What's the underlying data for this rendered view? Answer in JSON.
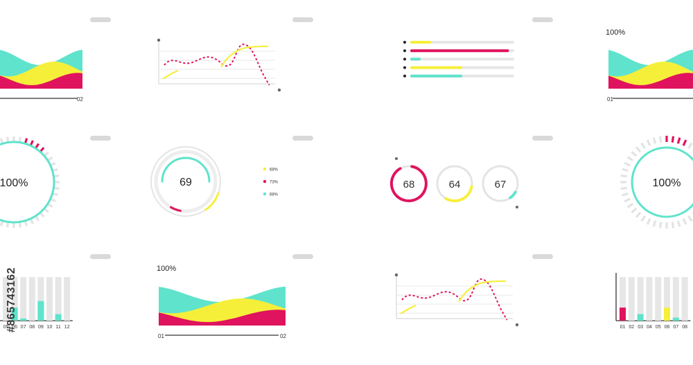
{
  "palette": {
    "cyan": "#5fe3cc",
    "yellow": "#f6ef3a",
    "magenta": "#e0135e",
    "grey": "#e6e6e6",
    "dark": "#333333"
  },
  "watermark": {
    "text": "#865743162"
  },
  "chart_data": [
    {
      "id": "wave-top-left",
      "type": "area",
      "title": "",
      "x_labels": [
        "02"
      ]
    },
    {
      "id": "line-top-2",
      "type": "line",
      "title": ""
    },
    {
      "id": "hbars-top-3",
      "type": "bar",
      "orientation": "horizontal",
      "series": [
        {
          "values": [
            20,
            95,
            10,
            50,
            50
          ]
        }
      ]
    },
    {
      "id": "wave-top-right",
      "type": "area",
      "title": "100%",
      "x_labels": [
        "01"
      ]
    },
    {
      "id": "ring-mid-left",
      "type": "pie",
      "center_label": "100%",
      "value": 100
    },
    {
      "id": "ring-mid-2",
      "type": "pie",
      "center_label": "69",
      "value": 69,
      "legend": [
        {
          "label": "68%",
          "color": "yellow"
        },
        {
          "label": "73%",
          "color": "magenta"
        },
        {
          "label": "68%",
          "color": "cyan"
        }
      ]
    },
    {
      "id": "rings-mid-3",
      "type": "pie",
      "items": [
        {
          "label": "68",
          "value": 68,
          "color": "magenta"
        },
        {
          "label": "64",
          "value": 64,
          "color": "yellow"
        },
        {
          "label": "67",
          "value": 67,
          "color": "cyan"
        }
      ]
    },
    {
      "id": "ring-mid-right",
      "type": "pie",
      "center_label": "100%",
      "value": 100
    },
    {
      "id": "bars-bottom-left",
      "type": "bar",
      "categories": [
        "05",
        "06",
        "07",
        "08",
        "09",
        "10",
        "11",
        "12"
      ],
      "series": [
        {
          "values": [
            0,
            30,
            5,
            0,
            45,
            0,
            15,
            0
          ]
        }
      ]
    },
    {
      "id": "wave-bottom-2",
      "type": "area",
      "title": "100%",
      "x_labels": [
        "01",
        "02"
      ]
    },
    {
      "id": "line-bottom-3",
      "type": "line",
      "title": ""
    },
    {
      "id": "bars-bottom-right",
      "type": "bar",
      "categories": [
        "01",
        "02",
        "03",
        "04",
        "05",
        "06",
        "07",
        "08"
      ],
      "series": [
        {
          "values": [
            30,
            0,
            15,
            0,
            0,
            30,
            7,
            0
          ]
        }
      ]
    }
  ]
}
